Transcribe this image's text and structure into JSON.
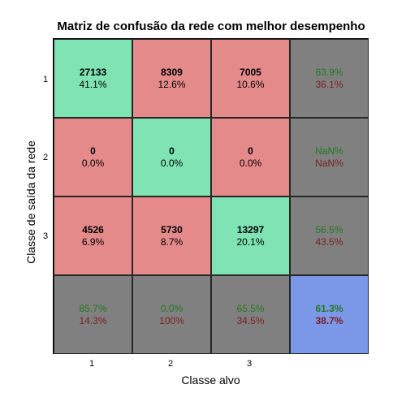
{
  "chart_data": {
    "type": "heatmap",
    "title": "Matriz de confusão da rede com melhor desempenho",
    "xlabel": "Classe alvo",
    "ylabel": "Classe de saída da rede",
    "x_ticks": [
      "1",
      "2",
      "3"
    ],
    "y_ticks": [
      "1",
      "2",
      "3"
    ],
    "matrix": [
      [
        27133,
        8309,
        7005
      ],
      [
        0,
        0,
        0
      ],
      [
        4526,
        5730,
        13297
      ]
    ],
    "matrix_percent": [
      [
        "41.1%",
        "12.6%",
        "10.6%"
      ],
      [
        "0.0%",
        "0.0%",
        "0.0%"
      ],
      [
        "6.9%",
        "8.7%",
        "20.1%"
      ]
    ],
    "row_summary": [
      {
        "correct": "63.9%",
        "wrong": "36.1%"
      },
      {
        "correct": "NaN%",
        "wrong": "NaN%"
      },
      {
        "correct": "56.5%",
        "wrong": "43.5%"
      }
    ],
    "col_summary": [
      {
        "correct": "85.7%",
        "wrong": "14.3%"
      },
      {
        "correct": "0.0%",
        "wrong": "100%"
      },
      {
        "correct": "65.5%",
        "wrong": "34.5%"
      }
    ],
    "overall": {
      "correct": "61.3%",
      "wrong": "38.7%"
    },
    "colors": {
      "diagonal": "#7fe3b4",
      "off_diagonal": "#e58a8a",
      "summary": "#808080",
      "overall": "#7b97e8",
      "correct_text": "#1f7a1f",
      "wrong_text": "#7a1f1f"
    }
  }
}
